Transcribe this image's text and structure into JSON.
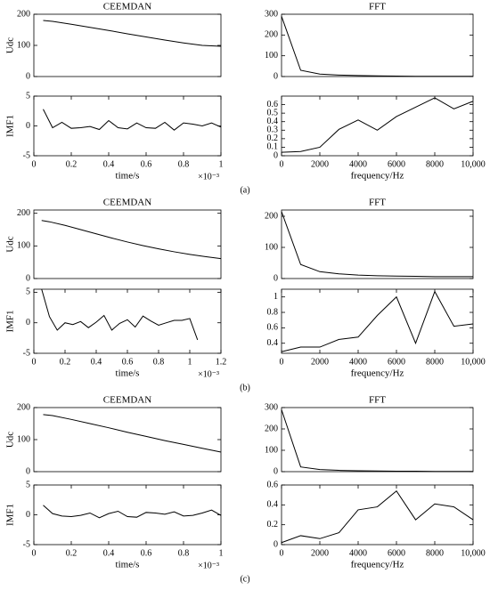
{
  "panel_labels": [
    "(a)",
    "(b)",
    "(c)"
  ],
  "chart_data": [
    {
      "type": "line",
      "title": "CEEMDAN",
      "ylabel": "Udc",
      "color": "#000000",
      "x": [
        0.05,
        0.1,
        0.2,
        0.3,
        0.4,
        0.5,
        0.6,
        0.7,
        0.8,
        0.9,
        1
      ],
      "values": [
        180,
        177,
        168,
        158,
        148,
        137,
        127,
        117,
        108,
        100,
        97
      ],
      "xlim": [
        0,
        1
      ],
      "ylim": [
        0,
        200
      ],
      "yticks": [
        0,
        100,
        200
      ]
    },
    {
      "type": "line",
      "ylabel": "IMF1",
      "xlabel": "time/s",
      "x_multiplier": "×10⁻³",
      "color": "#000000",
      "x": [
        0.05,
        0.1,
        0.15,
        0.2,
        0.25,
        0.3,
        0.35,
        0.4,
        0.45,
        0.5,
        0.55,
        0.6,
        0.65,
        0.7,
        0.75,
        0.8,
        0.85,
        0.9,
        0.95,
        1
      ],
      "values": [
        2.8,
        -0.3,
        0.6,
        -0.4,
        -0.3,
        -0.1,
        -0.6,
        0.9,
        -0.3,
        -0.5,
        0.5,
        -0.3,
        -0.4,
        0.6,
        -0.7,
        0.5,
        0.3,
        0.0,
        0.5,
        -0.2
      ],
      "xlim": [
        0,
        1
      ],
      "ylim": [
        -5,
        5
      ],
      "xticks": [
        0,
        0.2,
        0.4,
        0.6,
        0.8,
        1
      ],
      "yticks": [
        -5,
        0,
        5
      ]
    },
    {
      "type": "line",
      "title": "FFT",
      "color": "#000000",
      "x": [
        0,
        1000,
        2000,
        3000,
        4000,
        5000,
        6000,
        7000,
        8000,
        9000,
        10000
      ],
      "values": [
        290,
        30,
        12,
        7,
        5,
        3,
        2,
        1,
        1,
        1,
        1
      ],
      "xlim": [
        0,
        10000
      ],
      "ylim": [
        0,
        300
      ],
      "yticks": [
        0,
        100,
        200,
        300
      ]
    },
    {
      "type": "line",
      "xlabel": "frequency/Hz",
      "color": "#000000",
      "x": [
        0,
        1000,
        2000,
        3000,
        4000,
        5000,
        6000,
        7000,
        8000,
        9000,
        10000
      ],
      "values": [
        0.04,
        0.05,
        0.1,
        0.31,
        0.42,
        0.3,
        0.46,
        0.57,
        0.68,
        0.55,
        0.64
      ],
      "xlim": [
        0,
        10000
      ],
      "ylim": [
        0,
        0.7
      ],
      "xticks": [
        0,
        2000,
        4000,
        6000,
        8000,
        {
          "value": 10000,
          "label": "10,000"
        }
      ],
      "yticks": [
        0,
        0.1,
        0.2,
        0.3,
        0.4,
        0.5,
        0.6
      ]
    },
    {
      "type": "line",
      "title": "CEEMDAN",
      "ylabel": "Udc",
      "color": "#000000",
      "x": [
        0.05,
        0.1,
        0.2,
        0.3,
        0.4,
        0.5,
        0.6,
        0.7,
        0.8,
        0.9,
        1,
        1.1,
        1.2
      ],
      "values": [
        178,
        174,
        163,
        150,
        137,
        124,
        112,
        101,
        91,
        82,
        74,
        67,
        61
      ],
      "xlim": [
        0,
        1.2
      ],
      "ylim": [
        0,
        210
      ],
      "yticks": [
        0,
        100,
        200
      ]
    },
    {
      "type": "line",
      "ylabel": "IMF1",
      "xlabel": "time/s",
      "x_multiplier": "×10⁻³",
      "color": "#000000",
      "x": [
        0.05,
        0.1,
        0.15,
        0.2,
        0.25,
        0.3,
        0.35,
        0.4,
        0.45,
        0.5,
        0.55,
        0.6,
        0.65,
        0.7,
        0.75,
        0.8,
        0.85,
        0.9,
        0.95,
        1,
        1.05
      ],
      "values": [
        5.5,
        1,
        -1.2,
        0,
        -0.3,
        0.2,
        -0.8,
        0.1,
        1.2,
        -1.2,
        -0.1,
        0.5,
        -0.7,
        1.1,
        0.3,
        -0.4,
        0,
        0.4,
        0.4,
        0.7,
        -2.8
      ],
      "xlim": [
        0,
        1.2
      ],
      "ylim": [
        -5,
        5.5
      ],
      "xticks": [
        0,
        0.2,
        0.4,
        0.6,
        0.8,
        1,
        1.2
      ],
      "yticks": [
        -5,
        0,
        5
      ]
    },
    {
      "type": "line",
      "title": "FFT",
      "color": "#000000",
      "x": [
        0,
        1000,
        2000,
        3000,
        4000,
        5000,
        6000,
        7000,
        8000,
        9000,
        10000
      ],
      "values": [
        215,
        45,
        22,
        15,
        11,
        9,
        8,
        7,
        6,
        6,
        6
      ],
      "xlim": [
        0,
        10000
      ],
      "ylim": [
        0,
        220
      ],
      "yticks": [
        0,
        100,
        200
      ]
    },
    {
      "type": "line",
      "xlabel": "frequency/Hz",
      "color": "#000000",
      "x": [
        0,
        1000,
        2000,
        3000,
        4000,
        5000,
        6000,
        7000,
        8000,
        9000,
        10000
      ],
      "values": [
        0.29,
        0.35,
        0.35,
        0.45,
        0.48,
        0.76,
        1.0,
        0.4,
        1.07,
        0.62,
        0.65
      ],
      "xlim": [
        0,
        10000
      ],
      "ylim": [
        0.27,
        1.1
      ],
      "xticks": [
        0,
        2000,
        4000,
        6000,
        8000,
        {
          "value": 10000,
          "label": "10,000"
        }
      ],
      "yticks": [
        0.4,
        0.6,
        0.8,
        1
      ]
    },
    {
      "type": "line",
      "title": "CEEMDAN",
      "ylabel": "Udc",
      "color": "#000000",
      "x": [
        0.05,
        0.1,
        0.2,
        0.3,
        0.4,
        0.5,
        0.6,
        0.7,
        0.8,
        0.9,
        1
      ],
      "values": [
        178,
        175,
        163,
        150,
        137,
        123,
        110,
        97,
        85,
        73,
        61
      ],
      "xlim": [
        0,
        1
      ],
      "ylim": [
        0,
        200
      ],
      "yticks": [
        0,
        100,
        200
      ]
    },
    {
      "type": "line",
      "ylabel": "IMF1",
      "xlabel": "time/s",
      "x_multiplier": "×10⁻³",
      "color": "#000000",
      "x": [
        0.05,
        0.1,
        0.15,
        0.2,
        0.25,
        0.3,
        0.35,
        0.4,
        0.45,
        0.5,
        0.55,
        0.6,
        0.65,
        0.7,
        0.75,
        0.8,
        0.85,
        0.9,
        0.95,
        1
      ],
      "values": [
        1.6,
        0.2,
        -0.2,
        -0.3,
        -0.1,
        0.3,
        -0.5,
        0.2,
        0.6,
        -0.3,
        -0.4,
        0.4,
        0.3,
        0.1,
        0.5,
        -0.2,
        -0.1,
        0.3,
        0.8,
        -0.1
      ],
      "xlim": [
        0,
        1
      ],
      "ylim": [
        -5,
        5
      ],
      "xticks": [
        0,
        0.2,
        0.4,
        0.6,
        0.8,
        1
      ],
      "yticks": [
        -5,
        0,
        5
      ]
    },
    {
      "type": "line",
      "title": "FFT",
      "color": "#000000",
      "x": [
        0,
        1000,
        2000,
        3000,
        4000,
        5000,
        6000,
        7000,
        8000,
        9000,
        10000
      ],
      "values": [
        290,
        22,
        10,
        6,
        4,
        3,
        2,
        2,
        1,
        1,
        1
      ],
      "xlim": [
        0,
        10000
      ],
      "ylim": [
        0,
        300
      ],
      "yticks": [
        0,
        100,
        200,
        300
      ]
    },
    {
      "type": "line",
      "xlabel": "frequency/Hz",
      "color": "#000000",
      "x": [
        0,
        1000,
        2000,
        3000,
        4000,
        5000,
        6000,
        7000,
        8000,
        9000,
        10000
      ],
      "values": [
        0.02,
        0.09,
        0.06,
        0.12,
        0.35,
        0.38,
        0.54,
        0.25,
        0.41,
        0.38,
        0.25
      ],
      "xlim": [
        0,
        10000
      ],
      "ylim": [
        0,
        0.6
      ],
      "xticks": [
        0,
        2000,
        4000,
        6000,
        8000,
        {
          "value": 10000,
          "label": "10,000"
        }
      ],
      "yticks": [
        0,
        0.2,
        0.4,
        0.6
      ]
    }
  ]
}
